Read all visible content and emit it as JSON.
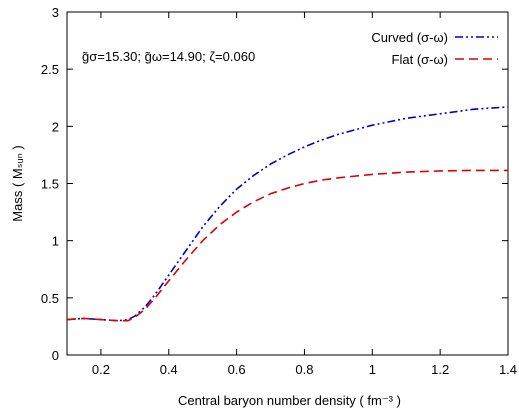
{
  "chart_data": {
    "type": "line",
    "xlabel": "Central baryon number density ( fm⁻³ )",
    "ylabel": "Mass ( Mₛᵤₙ )",
    "xlim": [
      0.1,
      1.4
    ],
    "ylim": [
      0,
      3
    ],
    "x_ticks": [
      "0.2",
      "0.4",
      "0.6",
      "0.8",
      "1",
      "1.2",
      "1.4"
    ],
    "y_ticks": [
      "0",
      "0.5",
      "1",
      "1.5",
      "2",
      "2.5",
      "3"
    ],
    "grid": false,
    "legend_position": "top-right",
    "annotation": "g̃σ=15.30; g̃ω=14.90; ζ=0.060",
    "series": [
      {
        "name": "Curved (σ-ω)",
        "color": "#0000cc",
        "dash": "dash-dot-dot",
        "x": [
          0.1,
          0.15,
          0.2,
          0.25,
          0.28,
          0.3,
          0.33,
          0.36,
          0.4,
          0.45,
          0.5,
          0.55,
          0.6,
          0.65,
          0.7,
          0.75,
          0.8,
          0.85,
          0.9,
          1.0,
          1.1,
          1.2,
          1.3,
          1.4
        ],
        "y": [
          0.31,
          0.32,
          0.31,
          0.3,
          0.31,
          0.34,
          0.42,
          0.53,
          0.7,
          0.91,
          1.12,
          1.3,
          1.45,
          1.57,
          1.67,
          1.75,
          1.82,
          1.88,
          1.93,
          2.01,
          2.07,
          2.11,
          2.15,
          2.17
        ]
      },
      {
        "name": "Flat (σ-ω)",
        "color": "#dd0000",
        "dash": "dashed",
        "x": [
          0.1,
          0.15,
          0.2,
          0.25,
          0.28,
          0.3,
          0.33,
          0.36,
          0.4,
          0.45,
          0.5,
          0.55,
          0.6,
          0.65,
          0.7,
          0.75,
          0.8,
          0.85,
          0.9,
          1.0,
          1.1,
          1.2,
          1.3,
          1.4
        ],
        "y": [
          0.31,
          0.32,
          0.31,
          0.3,
          0.3,
          0.33,
          0.4,
          0.5,
          0.65,
          0.83,
          1.0,
          1.14,
          1.25,
          1.34,
          1.41,
          1.46,
          1.5,
          1.53,
          1.55,
          1.58,
          1.6,
          1.61,
          1.615,
          1.615
        ]
      }
    ]
  }
}
